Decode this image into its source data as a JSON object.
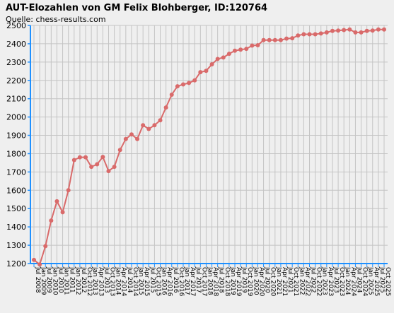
{
  "chart_data": {
    "type": "line",
    "title": "AUT-Elozahlen von GM Felix Blohberger, ID:120764",
    "subtitle": "Quelle: chess-results.com",
    "xlabel": "",
    "ylabel": "",
    "ylim": [
      1200,
      2500
    ],
    "yticks": [
      1200,
      1300,
      1400,
      1500,
      1600,
      1700,
      1800,
      1900,
      2000,
      2100,
      2200,
      2300,
      2400,
      2500
    ],
    "grid": true,
    "line_color": "#d96a6a",
    "axis_color": "#1e90ff",
    "background_color": "#efefef",
    "x_tick_labels": [
      "Jul 2008",
      "Jan 2009",
      "Jul 2009",
      "Jan 2010",
      "Jul 2010",
      "Jan 2011",
      "Jul 2011",
      "Jan 2012",
      "Jul 2012",
      "Oct 2012",
      "Jan 2013",
      "Apr 2013",
      "Jul 2013",
      "Oct 2013",
      "Jan 2014",
      "Apr 2014",
      "Jul 2014",
      "Oct 2014",
      "Jan 2015",
      "Apr 2015",
      "Jul 2015",
      "Oct 2015",
      "Jan 2016",
      "Apr 2016",
      "Jul 2016",
      "Oct 2016",
      "Jan 2017",
      "Apr 2017",
      "Jul 2017",
      "Oct 2017",
      "Jan 2018",
      "Apr 2018",
      "Jul 2018",
      "Oct 2018",
      "Jan 2019",
      "Apr 2019",
      "Jul 2019",
      "Oct 2019",
      "Jan 2020",
      "Apr 2020",
      "Jul 2020",
      "Oct 2020",
      "Jan 2021",
      "Apr 2021",
      "Jul 2021",
      "Oct 2021",
      "Jan 2022",
      "Apr 2022",
      "Jul 2022",
      "Oct 2022",
      "Jan 2023",
      "Apr 2023",
      "Jul 2023",
      "Oct 2023",
      "Jan 2024",
      "Apr 2024",
      "Jul 2024",
      "Oct 2024",
      "Jan 2025",
      "Apr 2025",
      "Jul 2025",
      "Oct 2025"
    ],
    "series": [
      {
        "values": [
          1220,
          1195,
          1295,
          1435,
          1540,
          1480,
          1600,
          1765,
          1780,
          1780,
          1728,
          1742,
          1782,
          1705,
          1728,
          1820,
          1880,
          1905,
          1880,
          1955,
          1935,
          1955,
          1982,
          2052,
          2122,
          2168,
          2178,
          2186,
          2200,
          2245,
          2252,
          2288,
          2317,
          2325,
          2345,
          2362,
          2368,
          2372,
          2390,
          2392,
          2420,
          2420,
          2420,
          2420,
          2428,
          2430,
          2445,
          2452,
          2452,
          2452,
          2456,
          2462,
          2470,
          2472,
          2475,
          2478,
          2462,
          2462,
          2470,
          2472,
          2478,
          2478
        ]
      }
    ]
  }
}
